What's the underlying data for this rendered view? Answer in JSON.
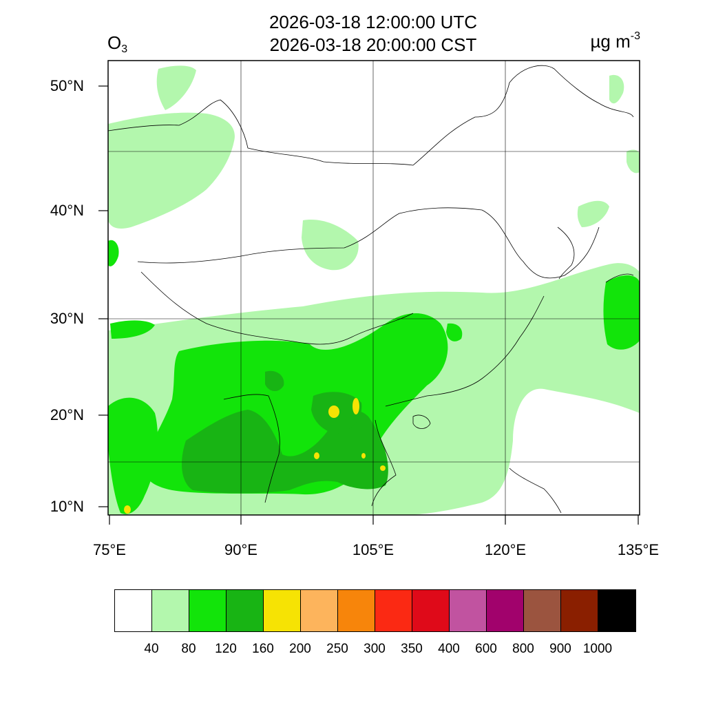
{
  "header": {
    "utc_time": "2026-03-18 12:00:00 UTC",
    "local_time": "2026-03-18 20:00:00 CST",
    "species_main": "O",
    "species_sub": "3",
    "units_main": "µg m",
    "units_sup": "-3"
  },
  "axes": {
    "lat_ticks": [
      "50°N",
      "40°N",
      "30°N",
      "20°N",
      "10°N"
    ],
    "lon_ticks": [
      "75°E",
      "90°E",
      "105°E",
      "120°E",
      "135°E"
    ]
  },
  "legend": {
    "labels": [
      "40",
      "80",
      "120",
      "160",
      "200",
      "250",
      "300",
      "350",
      "400",
      "600",
      "800",
      "900",
      "1000"
    ],
    "colors": [
      "#ffffff",
      "#b3f7ad",
      "#12e40a",
      "#18b414",
      "#f6e304",
      "#fdb45c",
      "#f7850b",
      "#fb2913",
      "#df0a19",
      "#c153a0",
      "#a1026c",
      "#9b543f",
      "#8a1f00",
      "#000000"
    ]
  }
}
